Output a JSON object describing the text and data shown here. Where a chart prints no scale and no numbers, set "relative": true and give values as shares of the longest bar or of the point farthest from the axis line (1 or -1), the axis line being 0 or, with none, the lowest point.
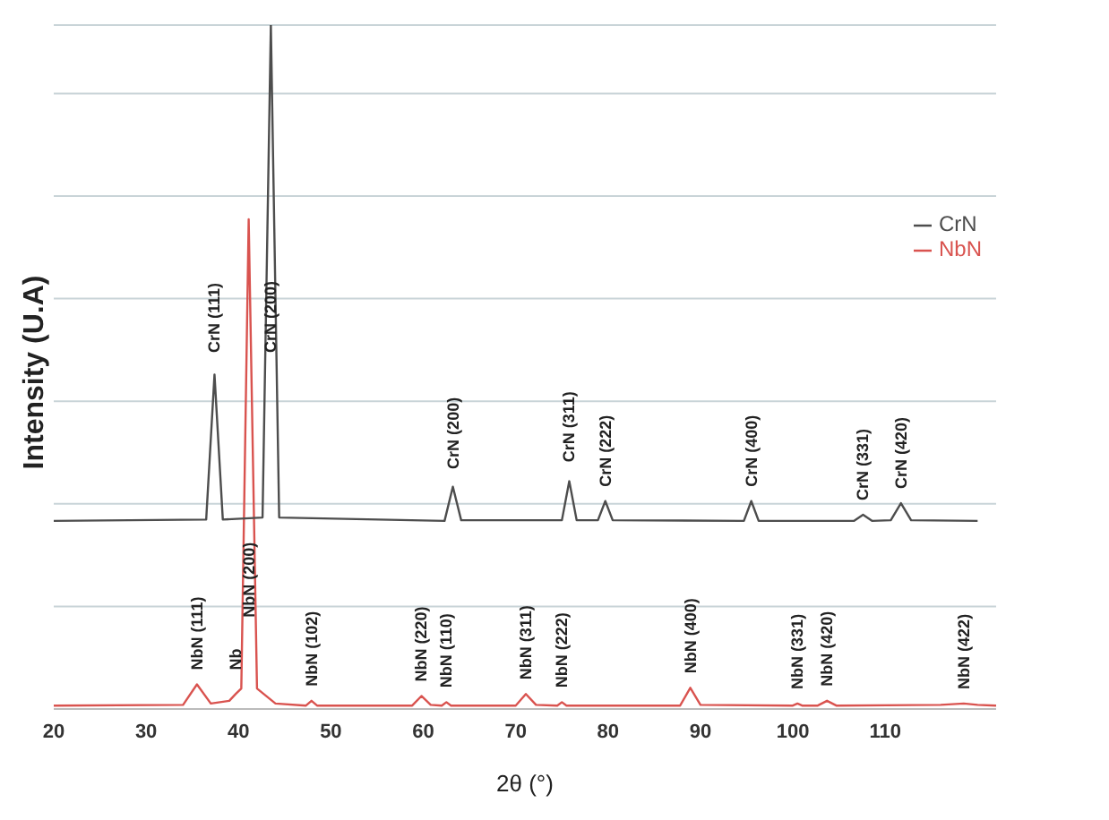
{
  "chart_data": {
    "type": "line",
    "relative": true,
    "xlabel": "2θ (°)",
    "ylabel": "Intensity (U.A)",
    "xlim": [
      20,
      122
    ],
    "xticks": [
      20,
      30,
      40,
      50,
      60,
      70,
      80,
      90,
      100,
      110
    ],
    "grid": "y",
    "legend": "top right",
    "marker": "none",
    "line_style": "solid",
    "series": [
      {
        "name": "NbN",
        "color": "#d9534f",
        "x": [
          20,
          34,
          35.5,
          37,
          39,
          39.7,
          40.3,
          41.1,
          42,
          44,
          47.3,
          47.9,
          48.5,
          58.8,
          59.8,
          60.8,
          62,
          62.5,
          63,
          70,
          71.1,
          72.2,
          74.5,
          75,
          75.5,
          87.8,
          88.9,
          90,
          100,
          100.5,
          101,
          102.7,
          103.7,
          104.7,
          116,
          118.5,
          120,
          122
        ],
        "values": [
          0.005,
          0.006,
          0.036,
          0.008,
          0.012,
          0.022,
          0.03,
          0.716,
          0.03,
          0.008,
          0.005,
          0.012,
          0.005,
          0.005,
          0.019,
          0.006,
          0.005,
          0.01,
          0.005,
          0.005,
          0.022,
          0.006,
          0.005,
          0.01,
          0.005,
          0.005,
          0.031,
          0.006,
          0.005,
          0.008,
          0.005,
          0.005,
          0.012,
          0.005,
          0.006,
          0.008,
          0.006,
          0.005
        ]
      },
      {
        "name": "CrN",
        "color": "#4d4d4d",
        "x": [
          20,
          36.5,
          37.4,
          38.3,
          42.6,
          43.5,
          44.4,
          62.3,
          63.2,
          64.1,
          75,
          75.8,
          76.6,
          78.9,
          79.7,
          80.5,
          94.7,
          95.5,
          96.3,
          106.6,
          107.6,
          108.6,
          110.6,
          111.7,
          112.8,
          120
        ],
        "values": [
          0.275,
          0.277,
          0.489,
          0.277,
          0.28,
          1,
          0.28,
          0.275,
          0.325,
          0.276,
          0.276,
          0.333,
          0.276,
          0.276,
          0.304,
          0.276,
          0.275,
          0.304,
          0.275,
          0.275,
          0.284,
          0.275,
          0.276,
          0.301,
          0.276,
          0.275
        ]
      }
    ],
    "annotations": [
      {
        "text": "CrN (111)",
        "x": 37.4,
        "y": 0.5
      },
      {
        "text": "CrN (200)",
        "x": 43.5,
        "y": 0.5
      },
      {
        "text": "CrN (200)",
        "x": 63.2,
        "y": 0.33
      },
      {
        "text": "CrN (311)",
        "x": 75.8,
        "y": 0.34
      },
      {
        "text": "CrN (222)",
        "x": 79.7,
        "y": 0.304
      },
      {
        "text": "CrN (400)",
        "x": 95.5,
        "y": 0.304
      },
      {
        "text": "CrN (331)",
        "x": 107.6,
        "y": 0.284
      },
      {
        "text": "CrN (420)",
        "x": 111.7,
        "y": 0.301
      },
      {
        "text": "NbN (111)",
        "x": 35.5,
        "y": 0.036
      },
      {
        "text": "Nb",
        "x": 39.7,
        "y": 0.036
      },
      {
        "text": "NbN (200)",
        "x": 41.1,
        "y": 0.113
      },
      {
        "text": "NbN (102)",
        "x": 47.9,
        "y": 0.012
      },
      {
        "text": "NbN (220)",
        "x": 59.8,
        "y": 0.019
      },
      {
        "text": "NbN (110)",
        "x": 62.5,
        "y": 0.01
      },
      {
        "text": "NbN (311)",
        "x": 71.1,
        "y": 0.022
      },
      {
        "text": "NbN (222)",
        "x": 75,
        "y": 0.01
      },
      {
        "text": "NbN (400)",
        "x": 88.9,
        "y": 0.031
      },
      {
        "text": "NbN (331)",
        "x": 100.5,
        "y": 0.008
      },
      {
        "text": "NbN (420)",
        "x": 103.7,
        "y": 0.012
      },
      {
        "text": "NbN (422)",
        "x": 118.5,
        "y": 0.008
      }
    ]
  }
}
